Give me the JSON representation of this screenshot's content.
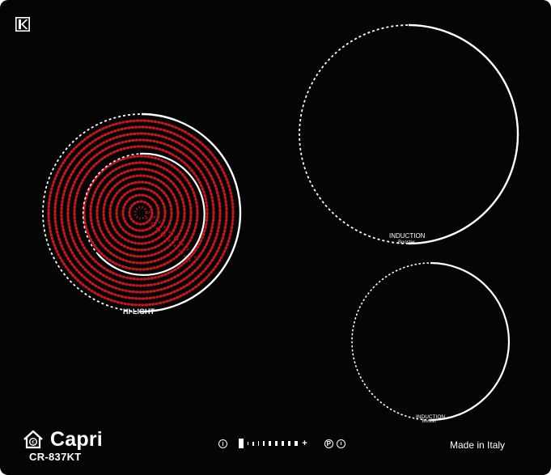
{
  "product": {
    "brand": "Capri",
    "model": "CR-837KT",
    "made_in": "Made in Italy"
  },
  "zones": [
    {
      "name": "left-hilight",
      "label": "HI-LIGHT",
      "type": "radiant",
      "glow_color": "#c4161c"
    },
    {
      "name": "top-right-induction",
      "label": "INDUCTION",
      "sublabel": "Booster",
      "type": "induction"
    },
    {
      "name": "bottom-right-induction",
      "label": "INDUCTION",
      "sublabel": "Booster",
      "type": "induction"
    }
  ],
  "controls": {
    "minus": "−",
    "plus": "+",
    "pause": "P",
    "power_icon": "power-icon",
    "pause_icon": "pause-icon",
    "timer_icon": "timer-icon"
  },
  "colors": {
    "glass": "#050505",
    "outline": "#ffffff",
    "heating_element": "#c4161c"
  }
}
